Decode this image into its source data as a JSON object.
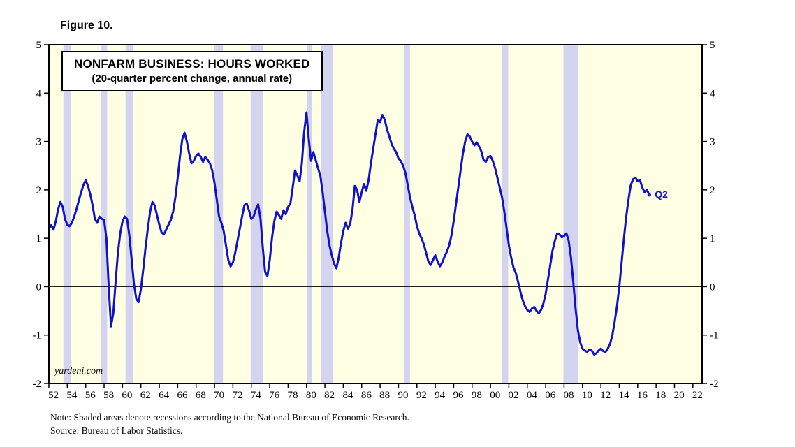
{
  "figure": {
    "label": "Figure 10."
  },
  "watermark": "yardeni.com",
  "notes": {
    "line1": "Note: Shaded areas denote recessions according to the National Bureau of Economic Research.",
    "line2": "Source: Bureau of Labor Statistics."
  },
  "colors": {
    "line": "#1111CC",
    "plot_bg": "#FFFFE4",
    "recession_band": "#D4D4F0",
    "axis": "#000000"
  },
  "chart_data": {
    "type": "line",
    "title": "NONFARM BUSINESS: HOURS WORKED",
    "subtitle": "(20-quarter percent change, annual rate)",
    "xlabel": "",
    "ylabel": "",
    "xlim": [
      1952,
      2023
    ],
    "ylim": [
      -2,
      5
    ],
    "grid": false,
    "legend_position": "none",
    "zero_line": true,
    "y_ticks": [
      -2,
      -1,
      0,
      1,
      2,
      3,
      4,
      5
    ],
    "x_ticks": [
      1952,
      1954,
      1956,
      1958,
      1960,
      1962,
      1964,
      1966,
      1968,
      1970,
      1972,
      1974,
      1976,
      1978,
      1980,
      1982,
      1984,
      1986,
      1988,
      1990,
      1992,
      1994,
      1996,
      1998,
      2000,
      2002,
      2004,
      2006,
      2008,
      2010,
      2012,
      2014,
      2016,
      2018,
      2020,
      2022
    ],
    "x_tick_labels": [
      "52",
      "54",
      "56",
      "58",
      "60",
      "62",
      "64",
      "66",
      "68",
      "70",
      "72",
      "74",
      "76",
      "78",
      "80",
      "82",
      "84",
      "86",
      "88",
      "90",
      "92",
      "94",
      "96",
      "98",
      "00",
      "02",
      "04",
      "06",
      "08",
      "10",
      "12",
      "14",
      "16",
      "18",
      "20",
      "22"
    ],
    "recessions": [
      [
        1953.58,
        1954.42
      ],
      [
        1957.67,
        1958.33
      ],
      [
        1960.33,
        1961.17
      ],
      [
        1969.92,
        1970.92
      ],
      [
        1973.92,
        1975.25
      ],
      [
        1980.08,
        1980.58
      ],
      [
        1981.58,
        1982.92
      ],
      [
        1990.58,
        1991.25
      ],
      [
        2001.25,
        2001.92
      ],
      [
        2007.92,
        2009.5
      ]
    ],
    "series": [
      {
        "name": "Nonfarm business hours worked, 20-quarter percent change (annual rate)",
        "end_label": "Q2",
        "points": [
          [
            1952,
            1.2
          ],
          [
            1952.25,
            1.27
          ],
          [
            1952.5,
            1.18
          ],
          [
            1952.75,
            1.35
          ],
          [
            1953,
            1.6
          ],
          [
            1953.25,
            1.75
          ],
          [
            1953.5,
            1.65
          ],
          [
            1953.75,
            1.4
          ],
          [
            1954,
            1.28
          ],
          [
            1954.25,
            1.25
          ],
          [
            1954.5,
            1.32
          ],
          [
            1954.75,
            1.45
          ],
          [
            1955,
            1.6
          ],
          [
            1955.25,
            1.78
          ],
          [
            1955.5,
            1.95
          ],
          [
            1955.75,
            2.1
          ],
          [
            1956,
            2.2
          ],
          [
            1956.25,
            2.08
          ],
          [
            1956.5,
            1.9
          ],
          [
            1956.75,
            1.68
          ],
          [
            1957,
            1.4
          ],
          [
            1957.25,
            1.32
          ],
          [
            1957.5,
            1.45
          ],
          [
            1957.75,
            1.4
          ],
          [
            1958,
            1.38
          ],
          [
            1958.25,
            1.0
          ],
          [
            1958.5,
            0.0
          ],
          [
            1958.75,
            -0.82
          ],
          [
            1959,
            -0.55
          ],
          [
            1959.25,
            0.1
          ],
          [
            1959.5,
            0.7
          ],
          [
            1959.75,
            1.1
          ],
          [
            1960,
            1.35
          ],
          [
            1960.25,
            1.45
          ],
          [
            1960.5,
            1.4
          ],
          [
            1960.75,
            1.05
          ],
          [
            1961,
            0.55
          ],
          [
            1961.25,
            0.05
          ],
          [
            1961.5,
            -0.25
          ],
          [
            1961.75,
            -0.32
          ],
          [
            1962,
            -0.05
          ],
          [
            1962.25,
            0.35
          ],
          [
            1962.5,
            0.8
          ],
          [
            1962.75,
            1.2
          ],
          [
            1963,
            1.55
          ],
          [
            1963.25,
            1.75
          ],
          [
            1963.5,
            1.68
          ],
          [
            1963.75,
            1.48
          ],
          [
            1964,
            1.28
          ],
          [
            1964.25,
            1.12
          ],
          [
            1964.5,
            1.08
          ],
          [
            1964.75,
            1.18
          ],
          [
            1965,
            1.28
          ],
          [
            1965.25,
            1.38
          ],
          [
            1965.5,
            1.55
          ],
          [
            1965.75,
            1.85
          ],
          [
            1966,
            2.25
          ],
          [
            1966.25,
            2.7
          ],
          [
            1966.5,
            3.05
          ],
          [
            1966.75,
            3.18
          ],
          [
            1967,
            3.0
          ],
          [
            1967.25,
            2.75
          ],
          [
            1967.5,
            2.55
          ],
          [
            1967.75,
            2.6
          ],
          [
            1968,
            2.7
          ],
          [
            1968.25,
            2.75
          ],
          [
            1968.5,
            2.68
          ],
          [
            1968.75,
            2.58
          ],
          [
            1969,
            2.68
          ],
          [
            1969.25,
            2.62
          ],
          [
            1969.5,
            2.55
          ],
          [
            1969.75,
            2.4
          ],
          [
            1970,
            2.15
          ],
          [
            1970.25,
            1.8
          ],
          [
            1970.5,
            1.45
          ],
          [
            1970.75,
            1.32
          ],
          [
            1971,
            1.15
          ],
          [
            1971.25,
            0.85
          ],
          [
            1971.5,
            0.55
          ],
          [
            1971.75,
            0.42
          ],
          [
            1972,
            0.5
          ],
          [
            1972.25,
            0.7
          ],
          [
            1972.5,
            0.95
          ],
          [
            1972.75,
            1.2
          ],
          [
            1973,
            1.45
          ],
          [
            1973.25,
            1.68
          ],
          [
            1973.5,
            1.72
          ],
          [
            1973.75,
            1.58
          ],
          [
            1974,
            1.4
          ],
          [
            1974.25,
            1.45
          ],
          [
            1974.5,
            1.6
          ],
          [
            1974.75,
            1.7
          ],
          [
            1975,
            1.4
          ],
          [
            1975.25,
            0.8
          ],
          [
            1975.5,
            0.3
          ],
          [
            1975.75,
            0.22
          ],
          [
            1976,
            0.55
          ],
          [
            1976.25,
            1.0
          ],
          [
            1976.5,
            1.35
          ],
          [
            1976.75,
            1.55
          ],
          [
            1977,
            1.48
          ],
          [
            1977.25,
            1.4
          ],
          [
            1977.5,
            1.58
          ],
          [
            1977.75,
            1.5
          ],
          [
            1978,
            1.65
          ],
          [
            1978.25,
            1.72
          ],
          [
            1978.5,
            2.05
          ],
          [
            1978.75,
            2.4
          ],
          [
            1979,
            2.3
          ],
          [
            1979.25,
            2.18
          ],
          [
            1979.5,
            2.55
          ],
          [
            1979.75,
            3.2
          ],
          [
            1980,
            3.6
          ],
          [
            1980.25,
            3.05
          ],
          [
            1980.5,
            2.6
          ],
          [
            1980.75,
            2.78
          ],
          [
            1981,
            2.62
          ],
          [
            1981.25,
            2.45
          ],
          [
            1981.5,
            2.3
          ],
          [
            1981.75,
            1.95
          ],
          [
            1982,
            1.55
          ],
          [
            1982.25,
            1.15
          ],
          [
            1982.5,
            0.85
          ],
          [
            1982.75,
            0.65
          ],
          [
            1983,
            0.48
          ],
          [
            1983.25,
            0.38
          ],
          [
            1983.5,
            0.6
          ],
          [
            1983.75,
            0.9
          ],
          [
            1984,
            1.15
          ],
          [
            1984.25,
            1.32
          ],
          [
            1984.5,
            1.2
          ],
          [
            1984.75,
            1.3
          ],
          [
            1985,
            1.6
          ],
          [
            1985.25,
            2.08
          ],
          [
            1985.5,
            2.0
          ],
          [
            1985.75,
            1.75
          ],
          [
            1986,
            1.95
          ],
          [
            1986.25,
            2.12
          ],
          [
            1986.5,
            1.98
          ],
          [
            1986.75,
            2.2
          ],
          [
            1987,
            2.55
          ],
          [
            1987.25,
            2.85
          ],
          [
            1987.5,
            3.15
          ],
          [
            1987.75,
            3.45
          ],
          [
            1988,
            3.4
          ],
          [
            1988.25,
            3.55
          ],
          [
            1988.5,
            3.45
          ],
          [
            1988.75,
            3.25
          ],
          [
            1989,
            3.1
          ],
          [
            1989.25,
            2.95
          ],
          [
            1989.5,
            2.85
          ],
          [
            1989.75,
            2.78
          ],
          [
            1990,
            2.65
          ],
          [
            1990.25,
            2.6
          ],
          [
            1990.5,
            2.5
          ],
          [
            1990.75,
            2.35
          ],
          [
            1991,
            2.1
          ],
          [
            1991.25,
            1.85
          ],
          [
            1991.5,
            1.65
          ],
          [
            1991.75,
            1.48
          ],
          [
            1992,
            1.25
          ],
          [
            1992.25,
            1.1
          ],
          [
            1992.5,
            1.0
          ],
          [
            1992.75,
            0.88
          ],
          [
            1993,
            0.7
          ],
          [
            1993.25,
            0.52
          ],
          [
            1993.5,
            0.45
          ],
          [
            1993.75,
            0.55
          ],
          [
            1994,
            0.65
          ],
          [
            1994.25,
            0.52
          ],
          [
            1994.5,
            0.42
          ],
          [
            1994.75,
            0.5
          ],
          [
            1995,
            0.62
          ],
          [
            1995.25,
            0.72
          ],
          [
            1995.5,
            0.85
          ],
          [
            1995.75,
            1.05
          ],
          [
            1996,
            1.35
          ],
          [
            1996.25,
            1.7
          ],
          [
            1996.5,
            2.05
          ],
          [
            1996.75,
            2.4
          ],
          [
            1997,
            2.75
          ],
          [
            1997.25,
            3.0
          ],
          [
            1997.5,
            3.15
          ],
          [
            1997.75,
            3.1
          ],
          [
            1998,
            3.0
          ],
          [
            1998.25,
            2.92
          ],
          [
            1998.5,
            2.98
          ],
          [
            1998.75,
            2.9
          ],
          [
            1999,
            2.8
          ],
          [
            1999.25,
            2.62
          ],
          [
            1999.5,
            2.58
          ],
          [
            1999.75,
            2.68
          ],
          [
            2000,
            2.7
          ],
          [
            2000.25,
            2.6
          ],
          [
            2000.5,
            2.45
          ],
          [
            2000.75,
            2.25
          ],
          [
            2001,
            2.05
          ],
          [
            2001.25,
            1.85
          ],
          [
            2001.5,
            1.55
          ],
          [
            2001.75,
            1.2
          ],
          [
            2002,
            0.85
          ],
          [
            2002.25,
            0.6
          ],
          [
            2002.5,
            0.4
          ],
          [
            2002.75,
            0.28
          ],
          [
            2003,
            0.1
          ],
          [
            2003.25,
            -0.1
          ],
          [
            2003.5,
            -0.28
          ],
          [
            2003.75,
            -0.4
          ],
          [
            2004,
            -0.48
          ],
          [
            2004.25,
            -0.52
          ],
          [
            2004.5,
            -0.45
          ],
          [
            2004.75,
            -0.42
          ],
          [
            2005,
            -0.5
          ],
          [
            2005.25,
            -0.55
          ],
          [
            2005.5,
            -0.48
          ],
          [
            2005.75,
            -0.35
          ],
          [
            2006,
            -0.15
          ],
          [
            2006.25,
            0.15
          ],
          [
            2006.5,
            0.45
          ],
          [
            2006.75,
            0.75
          ],
          [
            2007,
            0.95
          ],
          [
            2007.25,
            1.1
          ],
          [
            2007.5,
            1.08
          ],
          [
            2007.75,
            1.02
          ],
          [
            2008,
            1.05
          ],
          [
            2008.25,
            1.1
          ],
          [
            2008.5,
            0.95
          ],
          [
            2008.75,
            0.6
          ],
          [
            2009,
            0.1
          ],
          [
            2009.25,
            -0.45
          ],
          [
            2009.5,
            -0.9
          ],
          [
            2009.75,
            -1.15
          ],
          [
            2010,
            -1.28
          ],
          [
            2010.25,
            -1.32
          ],
          [
            2010.5,
            -1.35
          ],
          [
            2010.75,
            -1.3
          ],
          [
            2011,
            -1.32
          ],
          [
            2011.25,
            -1.4
          ],
          [
            2011.5,
            -1.38
          ],
          [
            2011.75,
            -1.32
          ],
          [
            2012,
            -1.28
          ],
          [
            2012.25,
            -1.33
          ],
          [
            2012.5,
            -1.35
          ],
          [
            2012.75,
            -1.28
          ],
          [
            2013,
            -1.18
          ],
          [
            2013.25,
            -1.0
          ],
          [
            2013.5,
            -0.72
          ],
          [
            2013.75,
            -0.4
          ],
          [
            2014,
            0.0
          ],
          [
            2014.25,
            0.5
          ],
          [
            2014.5,
            1.0
          ],
          [
            2014.75,
            1.45
          ],
          [
            2015,
            1.8
          ],
          [
            2015.25,
            2.1
          ],
          [
            2015.5,
            2.22
          ],
          [
            2015.75,
            2.25
          ],
          [
            2016,
            2.18
          ],
          [
            2016.25,
            2.2
          ],
          [
            2016.5,
            2.05
          ],
          [
            2016.75,
            1.95
          ],
          [
            2017,
            2.0
          ],
          [
            2017.25,
            1.9
          ]
        ]
      }
    ]
  }
}
